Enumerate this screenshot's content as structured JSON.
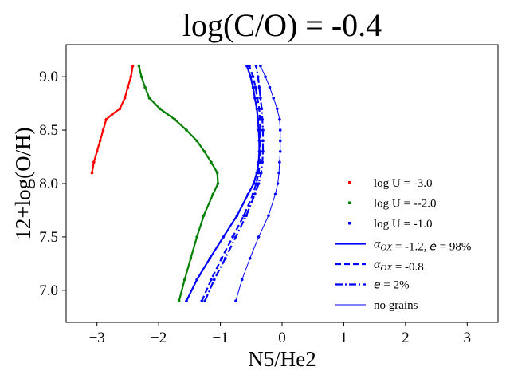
{
  "chart_data": {
    "type": "line",
    "title": "log(C/O) = -0.4",
    "xlabel": "N5/He2",
    "ylabel": "12+log(O/H)",
    "xlim": [
      -3.5,
      3.5
    ],
    "ylim": [
      6.7,
      9.3
    ],
    "xticks": [
      -3,
      -2,
      -1,
      0,
      1,
      2,
      3
    ],
    "xtick_labels": [
      "−3",
      "−2",
      "−1",
      "0",
      "1",
      "2",
      "3"
    ],
    "yticks": [
      7.0,
      7.5,
      8.0,
      8.5,
      9.0
    ],
    "ytick_labels": [
      "7.0",
      "7.5",
      "8.0",
      "8.5",
      "9.0"
    ],
    "grid": false,
    "legend_position": "center-right",
    "legend": [
      {
        "label": "log U = -3.0",
        "kind": "marker",
        "color": "#ff0000"
      },
      {
        "label": "log U = --2.0",
        "kind": "marker",
        "color": "#008000"
      },
      {
        "label": "log U = -1.0",
        "kind": "marker",
        "color": "#0000ff"
      },
      {
        "label_pre": "α",
        "label_sub": "OX",
        "label_mid": " = -1.2, ",
        "label_e": "e",
        "label_post": " = 98%",
        "kind": "solid",
        "color": "#0000ff"
      },
      {
        "label_pre": "α",
        "label_sub": "OX",
        "label_post": " = -0.8",
        "kind": "dashed",
        "color": "#0000ff"
      },
      {
        "label_e": "e",
        "label_post": " = 2%",
        "kind": "dashdot",
        "color": "#0000ff"
      },
      {
        "label": "no grains",
        "kind": "thin",
        "color": "#0000ff"
      }
    ],
    "series": [
      {
        "name": "log U = -3.0",
        "color": "#ff0000",
        "style": "solid",
        "width": 2.2,
        "points": [
          [
            -3.08,
            8.1
          ],
          [
            -3.05,
            8.2
          ],
          [
            -3.0,
            8.3
          ],
          [
            -2.95,
            8.4
          ],
          [
            -2.9,
            8.5
          ],
          [
            -2.85,
            8.6
          ],
          [
            -2.75,
            8.65
          ],
          [
            -2.63,
            8.7
          ],
          [
            -2.55,
            8.8
          ],
          [
            -2.5,
            8.9
          ],
          [
            -2.45,
            9.0
          ],
          [
            -2.42,
            9.1
          ]
        ]
      },
      {
        "name": "log U = -2.0",
        "color": "#008000",
        "style": "solid",
        "width": 2.2,
        "points": [
          [
            -1.67,
            6.9
          ],
          [
            -1.58,
            7.1
          ],
          [
            -1.48,
            7.3
          ],
          [
            -1.38,
            7.5
          ],
          [
            -1.27,
            7.7
          ],
          [
            -1.12,
            7.9
          ],
          [
            -1.04,
            8.0
          ],
          [
            -1.05,
            8.1
          ],
          [
            -1.15,
            8.2
          ],
          [
            -1.26,
            8.3
          ],
          [
            -1.38,
            8.4
          ],
          [
            -1.55,
            8.5
          ],
          [
            -1.74,
            8.6
          ],
          [
            -1.98,
            8.7
          ],
          [
            -2.15,
            8.8
          ],
          [
            -2.22,
            8.9
          ],
          [
            -2.28,
            9.0
          ],
          [
            -2.32,
            9.1
          ]
        ]
      },
      {
        "name": "alpha_OX = -1.2, e = 98%",
        "color": "#0000ff",
        "style": "solid",
        "width": 2.2,
        "points": [
          [
            -1.55,
            6.9
          ],
          [
            -1.38,
            7.1
          ],
          [
            -1.17,
            7.3
          ],
          [
            -0.95,
            7.5
          ],
          [
            -0.73,
            7.7
          ],
          [
            -0.55,
            7.9
          ],
          [
            -0.46,
            8.0
          ],
          [
            -0.41,
            8.1
          ],
          [
            -0.38,
            8.2
          ],
          [
            -0.37,
            8.3
          ],
          [
            -0.37,
            8.4
          ],
          [
            -0.38,
            8.5
          ],
          [
            -0.39,
            8.6
          ],
          [
            -0.41,
            8.7
          ],
          [
            -0.44,
            8.8
          ],
          [
            -0.47,
            8.9
          ],
          [
            -0.51,
            9.0
          ],
          [
            -0.57,
            9.1
          ]
        ]
      },
      {
        "name": "alpha_OX = -0.8",
        "color": "#0000ff",
        "style": "dashed",
        "width": 2.2,
        "points": [
          [
            -1.3,
            6.9
          ],
          [
            -1.15,
            7.1
          ],
          [
            -0.98,
            7.3
          ],
          [
            -0.8,
            7.5
          ],
          [
            -0.62,
            7.7
          ],
          [
            -0.47,
            7.9
          ],
          [
            -0.42,
            8.0
          ],
          [
            -0.38,
            8.1
          ],
          [
            -0.36,
            8.2
          ],
          [
            -0.35,
            8.3
          ],
          [
            -0.35,
            8.4
          ],
          [
            -0.35,
            8.5
          ],
          [
            -0.36,
            8.6
          ],
          [
            -0.37,
            8.7
          ],
          [
            -0.4,
            8.8
          ],
          [
            -0.43,
            8.9
          ],
          [
            -0.47,
            9.0
          ],
          [
            -0.53,
            9.1
          ]
        ]
      },
      {
        "name": "e = 2%",
        "color": "#0000ff",
        "style": "dashdot",
        "width": 2.2,
        "points": [
          [
            -1.25,
            6.9
          ],
          [
            -1.1,
            7.1
          ],
          [
            -0.92,
            7.3
          ],
          [
            -0.75,
            7.5
          ],
          [
            -0.58,
            7.7
          ],
          [
            -0.44,
            7.9
          ],
          [
            -0.38,
            8.0
          ],
          [
            -0.34,
            8.1
          ],
          [
            -0.32,
            8.2
          ],
          [
            -0.31,
            8.3
          ],
          [
            -0.31,
            8.4
          ],
          [
            -0.31,
            8.5
          ],
          [
            -0.32,
            8.6
          ],
          [
            -0.33,
            8.7
          ],
          [
            -0.35,
            8.8
          ],
          [
            -0.37,
            8.9
          ],
          [
            -0.39,
            9.0
          ],
          [
            -0.42,
            9.1
          ]
        ]
      },
      {
        "name": "no grains",
        "color": "#0000ff",
        "style": "solid",
        "width": 1.0,
        "points": [
          [
            -0.75,
            6.9
          ],
          [
            -0.65,
            7.1
          ],
          [
            -0.52,
            7.3
          ],
          [
            -0.38,
            7.5
          ],
          [
            -0.22,
            7.7
          ],
          [
            -0.11,
            7.9
          ],
          [
            -0.07,
            8.0
          ],
          [
            -0.05,
            8.1
          ],
          [
            -0.04,
            8.2
          ],
          [
            -0.03,
            8.3
          ],
          [
            -0.03,
            8.4
          ],
          [
            -0.03,
            8.5
          ],
          [
            -0.04,
            8.6
          ],
          [
            -0.08,
            8.7
          ],
          [
            -0.14,
            8.8
          ],
          [
            -0.2,
            8.9
          ],
          [
            -0.27,
            9.0
          ],
          [
            -0.35,
            9.1
          ]
        ]
      }
    ]
  }
}
